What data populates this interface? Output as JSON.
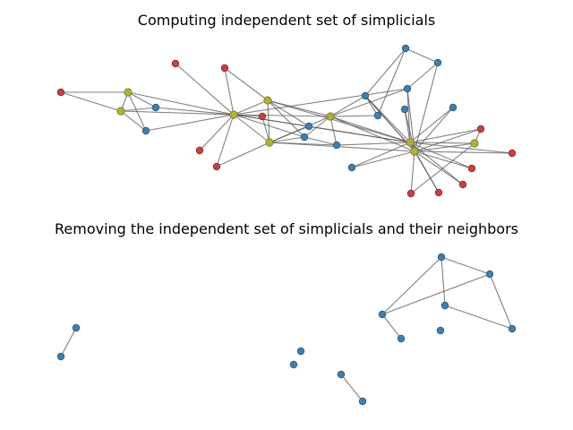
{
  "titles": {
    "top": "Computing independent set of simplicials",
    "bottom": "Removing the independent set of simplicials and their neighbors"
  },
  "colors": {
    "simplicial": "#c84040",
    "neighbor": "#b0b03a",
    "other": "#3f7fb0",
    "edge": "#555555"
  },
  "graph_top": {
    "nodes": [
      {
        "id": "r1",
        "role": "simplicial"
      },
      {
        "id": "r2",
        "role": "simplicial"
      },
      {
        "id": "r3",
        "role": "simplicial"
      },
      {
        "id": "r4",
        "role": "simplicial"
      },
      {
        "id": "r5",
        "role": "simplicial"
      },
      {
        "id": "r6",
        "role": "simplicial"
      },
      {
        "id": "r7",
        "role": "simplicial"
      },
      {
        "id": "r8",
        "role": "simplicial"
      },
      {
        "id": "r9",
        "role": "simplicial"
      },
      {
        "id": "r10",
        "role": "simplicial"
      },
      {
        "id": "r11",
        "role": "simplicial"
      },
      {
        "id": "r12",
        "role": "simplicial"
      },
      {
        "id": "y1",
        "role": "neighbor"
      },
      {
        "id": "y2",
        "role": "neighbor"
      },
      {
        "id": "y3",
        "role": "neighbor"
      },
      {
        "id": "y4",
        "role": "neighbor"
      },
      {
        "id": "y5",
        "role": "neighbor"
      },
      {
        "id": "y6",
        "role": "neighbor"
      },
      {
        "id": "y7",
        "role": "neighbor"
      },
      {
        "id": "y8",
        "role": "neighbor"
      },
      {
        "id": "y9",
        "role": "neighbor"
      },
      {
        "id": "b1",
        "role": "other"
      },
      {
        "id": "b2",
        "role": "other"
      },
      {
        "id": "b3",
        "role": "other"
      },
      {
        "id": "b4",
        "role": "other"
      },
      {
        "id": "b5",
        "role": "other"
      },
      {
        "id": "b6",
        "role": "other"
      },
      {
        "id": "b7",
        "role": "other"
      },
      {
        "id": "b8",
        "role": "other"
      },
      {
        "id": "b9",
        "role": "other"
      },
      {
        "id": "b10",
        "role": "other"
      },
      {
        "id": "b11",
        "role": "other"
      },
      {
        "id": "b12",
        "role": "other"
      },
      {
        "id": "b13",
        "role": "other"
      }
    ],
    "edges": [
      [
        "r1",
        "y1"
      ],
      [
        "r1",
        "y2"
      ],
      [
        "y1",
        "y2"
      ],
      [
        "y1",
        "b1"
      ],
      [
        "y1",
        "b2"
      ],
      [
        "y2",
        "b1"
      ],
      [
        "y2",
        "b2"
      ],
      [
        "y2",
        "y3"
      ],
      [
        "b1",
        "y3"
      ],
      [
        "b2",
        "y3"
      ],
      [
        "y1",
        "y3"
      ],
      [
        "r2",
        "y3"
      ],
      [
        "r3",
        "y3"
      ],
      [
        "r3",
        "y4"
      ],
      [
        "r4",
        "y3"
      ],
      [
        "r5",
        "y3"
      ],
      [
        "r5",
        "y5"
      ],
      [
        "y3",
        "y4"
      ],
      [
        "y3",
        "y5"
      ],
      [
        "y3",
        "y6"
      ],
      [
        "y3",
        "b3"
      ],
      [
        "y3",
        "r6"
      ],
      [
        "y3",
        "y7"
      ],
      [
        "y3",
        "b4"
      ],
      [
        "y4",
        "y5"
      ],
      [
        "y4",
        "y6"
      ],
      [
        "y4",
        "b3"
      ],
      [
        "y4",
        "b4"
      ],
      [
        "y4",
        "y7"
      ],
      [
        "y5",
        "y6"
      ],
      [
        "y5",
        "b3"
      ],
      [
        "y5",
        "b4"
      ],
      [
        "y5",
        "r6"
      ],
      [
        "y5",
        "b5"
      ],
      [
        "y6",
        "b5"
      ],
      [
        "y6",
        "b6"
      ],
      [
        "y6",
        "b7"
      ],
      [
        "y6",
        "b10"
      ],
      [
        "y6",
        "y7"
      ],
      [
        "y6",
        "b4"
      ],
      [
        "b3",
        "y7"
      ],
      [
        "b4",
        "b5"
      ],
      [
        "b5",
        "y7"
      ],
      [
        "b6",
        "b8"
      ],
      [
        "b6",
        "b7"
      ],
      [
        "b6",
        "y7"
      ],
      [
        "b6",
        "y8"
      ],
      [
        "b8",
        "b9"
      ],
      [
        "b8",
        "b7"
      ],
      [
        "b9",
        "b10"
      ],
      [
        "b9",
        "y8"
      ],
      [
        "b10",
        "y8"
      ],
      [
        "b10",
        "y7"
      ],
      [
        "b11",
        "y7"
      ],
      [
        "b11",
        "y8"
      ],
      [
        "y7",
        "y8"
      ],
      [
        "y7",
        "r7"
      ],
      [
        "y7",
        "r8"
      ],
      [
        "y7",
        "r9"
      ],
      [
        "y7",
        "r10"
      ],
      [
        "y7",
        "r11"
      ],
      [
        "y7",
        "y9"
      ],
      [
        "y7",
        "b12"
      ],
      [
        "y7",
        "b13"
      ],
      [
        "y8",
        "r7"
      ],
      [
        "y8",
        "r8"
      ],
      [
        "y8",
        "r9"
      ],
      [
        "y8",
        "r10"
      ],
      [
        "y8",
        "r11"
      ],
      [
        "y8",
        "y9"
      ],
      [
        "y8",
        "b12"
      ],
      [
        "y8",
        "b6"
      ],
      [
        "y9",
        "r12"
      ],
      [
        "y9",
        "r7"
      ],
      [
        "r12",
        "y8"
      ],
      [
        "b13",
        "y8"
      ],
      [
        "y3",
        "b10"
      ],
      [
        "y6",
        "y8"
      ],
      [
        "y5",
        "y8"
      ]
    ]
  },
  "graph_bottom": {
    "nodes": [
      {
        "id": "c1",
        "role": "other"
      },
      {
        "id": "c2",
        "role": "other"
      },
      {
        "id": "c3",
        "role": "other"
      },
      {
        "id": "c4",
        "role": "other"
      },
      {
        "id": "c5",
        "role": "other"
      },
      {
        "id": "c6",
        "role": "other"
      },
      {
        "id": "c7",
        "role": "other"
      },
      {
        "id": "c8",
        "role": "other"
      },
      {
        "id": "c9",
        "role": "other"
      },
      {
        "id": "c10",
        "role": "other"
      },
      {
        "id": "c11",
        "role": "other"
      },
      {
        "id": "c12",
        "role": "other"
      },
      {
        "id": "c13",
        "role": "other"
      },
      {
        "id": "c14",
        "role": "other"
      }
    ],
    "edges": [
      [
        "c1",
        "c2"
      ],
      [
        "c5",
        "c6"
      ],
      [
        "c7",
        "c8"
      ],
      [
        "c7",
        "c9"
      ],
      [
        "c7",
        "c11"
      ],
      [
        "c8",
        "c9"
      ],
      [
        "c8",
        "c10"
      ],
      [
        "c9",
        "c12"
      ],
      [
        "c10",
        "c12"
      ],
      [
        "c7",
        "c13"
      ]
    ]
  }
}
